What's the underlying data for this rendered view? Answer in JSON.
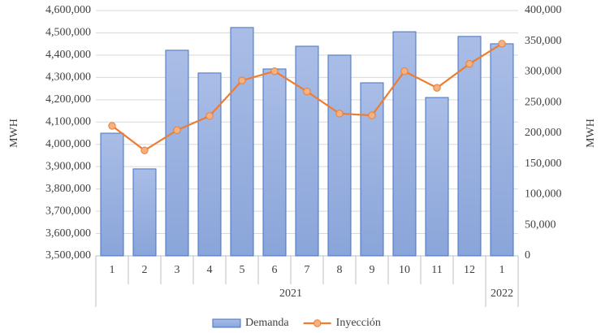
{
  "chart_data": {
    "type": "bar",
    "categories": [
      "1",
      "2",
      "3",
      "4",
      "5",
      "6",
      "7",
      "8",
      "9",
      "10",
      "11",
      "12",
      "1"
    ],
    "groups": [
      {
        "label": "2021",
        "count": 12
      },
      {
        "label": "2022",
        "count": 1
      }
    ],
    "series": [
      {
        "name": "Demanda",
        "type": "bar",
        "color": "#4472c4",
        "values": [
          4050000,
          3890000,
          4422000,
          4320000,
          4524000,
          4338000,
          4440000,
          4400000,
          4276000,
          4505000,
          4210000,
          4484000,
          4451000
        ]
      },
      {
        "name": "Inyección",
        "type": "line",
        "axis": "y2",
        "color": "#ed7d31",
        "values": [
          212000,
          172000,
          205000,
          228000,
          286000,
          301000,
          268000,
          232000,
          229000,
          301000,
          274000,
          313000,
          346000
        ]
      }
    ],
    "ylabel": "MWH",
    "y2label": "MWH",
    "ylim": [
      3500000,
      4600000
    ],
    "yticks": [
      {
        "value": 3500000,
        "label": "3,500,000"
      },
      {
        "value": 3600000,
        "label": "3,600,000"
      },
      {
        "value": 3700000,
        "label": "3,700,000"
      },
      {
        "value": 3800000,
        "label": "3,800,000"
      },
      {
        "value": 3900000,
        "label": "3,900,000"
      },
      {
        "value": 4000000,
        "label": "4,000,000"
      },
      {
        "value": 4100000,
        "label": "4,100,000"
      },
      {
        "value": 4200000,
        "label": "4,200,000"
      },
      {
        "value": 4300000,
        "label": "4,300,000"
      },
      {
        "value": 4400000,
        "label": "4,400,000"
      },
      {
        "value": 4500000,
        "label": "4,500,000"
      },
      {
        "value": 4600000,
        "label": "4,600,000"
      }
    ],
    "y2lim": [
      0,
      400000
    ],
    "y2ticks": [
      0,
      {
        "value": 50000,
        "label": "50,000"
      },
      {
        "value": 100000,
        "label": "100,000"
      },
      {
        "value": 150000,
        "label": "150,000"
      },
      {
        "value": 200000,
        "label": "200,000"
      },
      {
        "value": 250000,
        "label": "250,000"
      },
      {
        "value": 300000,
        "label": "300,000"
      },
      {
        "value": 350000,
        "label": "350,000"
      },
      {
        "value": 400000,
        "label": "400,000"
      }
    ],
    "grid": true,
    "legend": "bottom"
  }
}
